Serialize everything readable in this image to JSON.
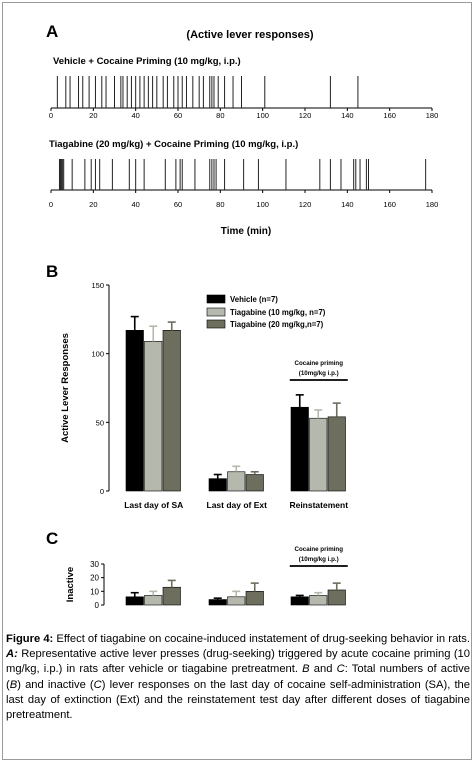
{
  "panel_labels": {
    "a": "A",
    "b": "B",
    "c": "C"
  },
  "chart_data": [
    {
      "type": "event-raster",
      "panel": "A",
      "title": "(Active lever responses)",
      "xlabel": "Time (min)",
      "xlim": [
        0,
        180
      ],
      "xticks": [
        0,
        20,
        40,
        60,
        80,
        100,
        120,
        140,
        160,
        180
      ],
      "series": [
        {
          "name": "Vehicle + Cocaine Priming (10 mg/kg, i.p.)",
          "events": [
            3,
            7,
            9,
            13,
            15,
            18,
            21,
            24,
            26,
            30,
            33,
            34,
            36,
            38,
            40,
            42,
            44,
            46,
            48,
            50,
            53,
            55,
            58,
            60,
            62,
            64,
            67,
            70,
            72,
            75,
            76,
            77,
            79,
            82,
            86,
            90,
            101,
            132,
            145
          ]
        },
        {
          "name": "Tiagabine (20 mg/kg) + Cocaine Priming (10 mg/kg, i.p.)",
          "events": [
            4,
            4.5,
            5,
            5.5,
            6,
            10,
            16,
            19,
            21,
            23,
            29,
            37,
            40,
            44,
            54,
            59,
            61,
            62,
            68,
            75,
            76,
            77,
            78,
            82,
            91,
            98,
            111,
            127,
            132,
            137,
            143,
            144,
            146,
            149,
            150,
            177
          ]
        }
      ]
    },
    {
      "type": "bar",
      "panel": "B",
      "ylabel": "Active Lever Responses",
      "ylim": [
        0,
        150
      ],
      "yticks": [
        0,
        50,
        100,
        150
      ],
      "categories": [
        "Last day of SA",
        "Last day of Ext",
        "Reinstatement"
      ],
      "series": [
        {
          "name": "Vehicle (n=7)",
          "color": "#000000",
          "values": [
            117,
            9,
            61
          ],
          "errors": [
            10,
            3,
            9
          ]
        },
        {
          "name": "Tiagabine (10 mg/kg, n=7)",
          "color": "#b5b8ad",
          "values": [
            109,
            14,
            53
          ],
          "errors": [
            11,
            4,
            6
          ]
        },
        {
          "name": "Tiagabine (20 mg/kg,n=7)",
          "color": "#6e6e5e",
          "values": [
            117,
            12,
            54
          ],
          "errors": [
            6,
            2,
            10
          ]
        }
      ],
      "annotation": {
        "line1": "Cocaine priming",
        "line2": "(10mg/kg i.p.)",
        "category": "Reinstatement"
      },
      "legend_position": "top-right"
    },
    {
      "type": "bar",
      "panel": "C",
      "ylabel": "Inactive",
      "ylim": [
        0,
        30
      ],
      "yticks": [
        0,
        10,
        20,
        30
      ],
      "categories": [
        "Last day of SA",
        "Last day of Ext",
        "Reinstatement"
      ],
      "series": [
        {
          "name": "Vehicle (n=7)",
          "color": "#000000",
          "values": [
            6,
            4,
            6
          ],
          "errors": [
            3,
            1,
            1
          ]
        },
        {
          "name": "Tiagabine (10 mg/kg, n=7)",
          "color": "#b5b8ad",
          "values": [
            7,
            6,
            7
          ],
          "errors": [
            3,
            4,
            2
          ]
        },
        {
          "name": "Tiagabine (20 mg/kg,n=7)",
          "color": "#6e6e5e",
          "values": [
            13,
            10,
            11
          ],
          "errors": [
            5,
            6,
            5
          ]
        }
      ],
      "annotation": {
        "line1": "Cocaine priming",
        "line2": "(10mg/kg i.p.)",
        "category": "Reinstatement"
      }
    }
  ],
  "caption": {
    "figure_label": "Figure 4:",
    "title": " Effect of tiagabine on cocaine-induced instatement of drug-seeking behavior in rats. ",
    "a_label": "A:",
    "a_text": " Representative active lever presses (drug-seeking) triggered by acute cocaine priming (10 mg/kg, i.p.) in rats after vehicle or tiagabine pretreatment. ",
    "b_label": "B",
    "and": " and ",
    "c_label": "C",
    "bc_text1": ": Total numbers of active (",
    "b_ref": "B",
    "bc_text2": ") and inactive (",
    "c_ref": "C",
    "bc_text3": ") lever responses on the last day of cocaine self-administration (SA), the last day of extinction (Ext) and the reinstatement test day after different doses of tiagabine pretreatment."
  }
}
